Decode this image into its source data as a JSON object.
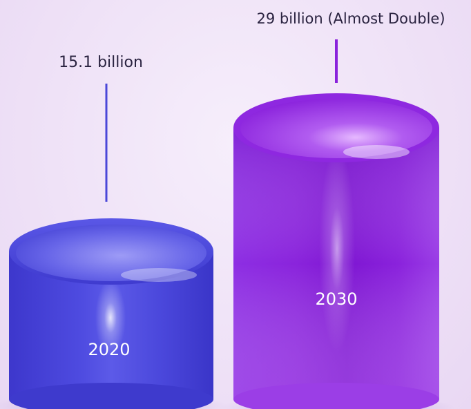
{
  "chart_data": {
    "type": "bar",
    "style": "3d-cylinder",
    "categories": [
      "2020",
      "2030"
    ],
    "values": [
      15.1,
      29
    ],
    "value_unit": "billion",
    "annotations": [
      "15.1 billion",
      "29 billion (Almost Double)"
    ],
    "colors": [
      "#4b48dc",
      "#8a22e0"
    ],
    "legend": "none",
    "grid": false
  }
}
